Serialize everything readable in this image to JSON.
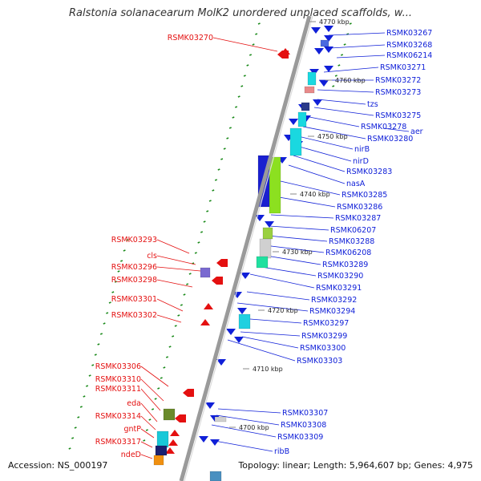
{
  "title": "Ralstonia solanacearum MolK2 unordered unplaced scaffolds, w...",
  "footer": {
    "accession": "Accession: NS_000197",
    "topology": "Topology: linear; Length: 5,964,607 bp; Genes: 4,975"
  },
  "colors": {
    "reverse_strand": "#e41010",
    "forward_strand": "#1020d8",
    "backbone": "#9a9a9a",
    "tick": "#1a8a1a"
  },
  "scale_labels": [
    "4770 kbp",
    "4760 kbp",
    "4750 kbp",
    "4740 kbp",
    "4730 kbp",
    "4720 kbp",
    "4710 kbp",
    "4700 kbp"
  ],
  "left_labels": [
    "RSMK03270",
    "RSMK03293",
    "cls",
    "RSMK03296",
    "RSMK03298",
    "RSMK03301",
    "RSMK03302",
    "RSMK03306",
    "RSMK03310",
    "RSMK03311",
    "eda",
    "RSMK03314",
    "gntP",
    "RSMK03317",
    "ndeD"
  ],
  "right_labels": [
    "RSMK03267",
    "RSMK03268",
    "RSMK06214",
    "RSMK03271",
    "RSMK03272",
    "RSMK03273",
    "tzs",
    "RSMK03275",
    "RSMK03278",
    "aer",
    "RSMK03280",
    "nirB",
    "nirD",
    "RSMK03283",
    "nasA",
    "RSMK03285",
    "RSMK03286",
    "RSMK03287",
    "RSMK06207",
    "RSMK03288",
    "RSMK06208",
    "RSMK03289",
    "RSMK03290",
    "RSMK03291",
    "RSMK03292",
    "RSMK03294",
    "RSMK03297",
    "RSMK03299",
    "RSMK03300",
    "RSMK03303",
    "RSMK03307",
    "RSMK03308",
    "RSMK03309",
    "ribB"
  ]
}
